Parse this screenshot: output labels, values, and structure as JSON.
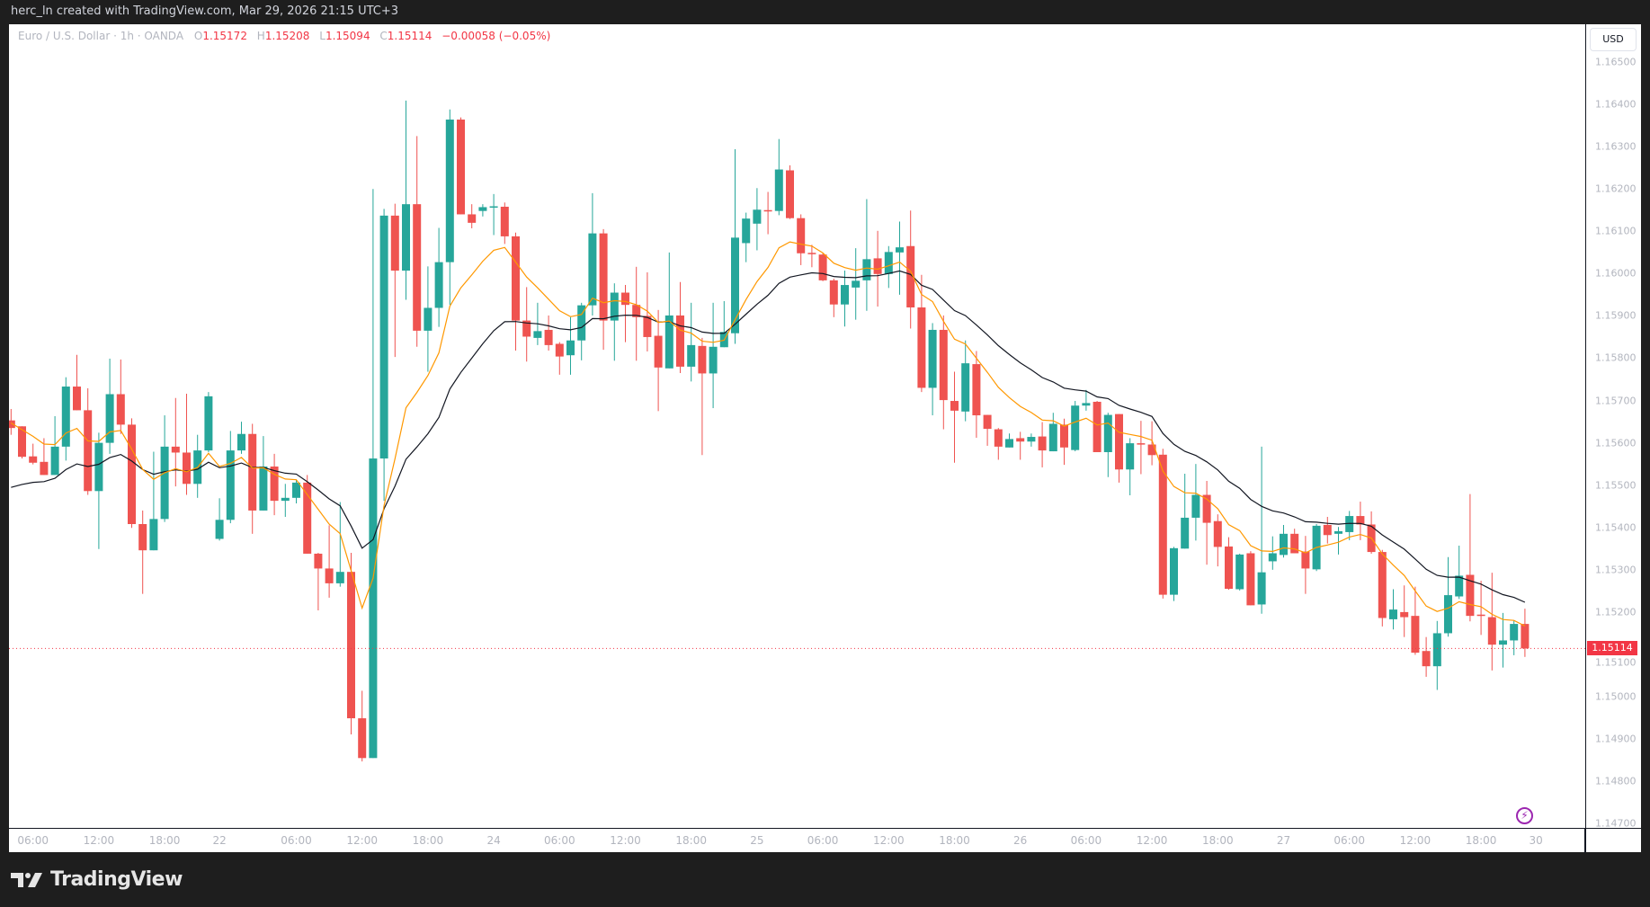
{
  "header": {
    "caption": "herc_ln created with TradingView.com, Mar 29, 2026 21:15 UTC+3"
  },
  "legend": {
    "symbol": "Euro / U.S. Dollar · 1h · OANDA",
    "open_label": "O",
    "open": "1.15172",
    "high_label": "H",
    "high": "1.15208",
    "low_label": "L",
    "low": "1.15094",
    "close_label": "C",
    "close": "1.15114",
    "change": "−0.00058 (−0.05%)"
  },
  "price_axis": {
    "currency": "USD",
    "last_price": "1.15114"
  },
  "footer": {
    "brand": "TradingView"
  },
  "colors": {
    "up": "#26a69a",
    "down": "#ef5350",
    "fast_ma": "#ff9800",
    "slow_ma": "#131722",
    "last_price": "#f23645",
    "alert_icon": "#9c27b0"
  },
  "icons": {
    "alert": "lightning-icon",
    "brand": "tradingview-logo-icon"
  },
  "chart_data": {
    "type": "candlestick",
    "interval": "1h",
    "ylim": [
      1.147,
      1.165
    ],
    "grid": false,
    "y_ticks": [
      "1.16500",
      "1.16400",
      "1.16300",
      "1.16200",
      "1.16100",
      "1.16000",
      "1.15900",
      "1.15800",
      "1.15700",
      "1.15600",
      "1.15500",
      "1.15400",
      "1.15300",
      "1.15200",
      "1.15100",
      "1.15000",
      "1.14900",
      "1.14800",
      "1.14700"
    ],
    "x_ticks": [
      "06:00",
      "12:00",
      "18:00",
      "22",
      "06:00",
      "12:00",
      "18:00",
      "24",
      "06:00",
      "12:00",
      "18:00",
      "25",
      "06:00",
      "12:00",
      "18:00",
      "26",
      "06:00",
      "12:00",
      "18:00",
      "27",
      "06:00",
      "12:00",
      "18:00",
      "30"
    ],
    "ohlc_fields": [
      "open",
      "high",
      "low",
      "close"
    ],
    "candles": [
      [
        1.15653,
        1.1568,
        1.15619,
        1.15635
      ],
      [
        1.15639,
        1.15639,
        1.15563,
        1.15567
      ],
      [
        1.15568,
        1.15598,
        1.15549,
        1.15553
      ],
      [
        1.15555,
        1.15611,
        1.15524,
        1.15524
      ],
      [
        1.15524,
        1.15663,
        1.15524,
        1.15591
      ],
      [
        1.15591,
        1.15755,
        1.15558,
        1.15733
      ],
      [
        1.15733,
        1.15808,
        1.15677,
        1.15677
      ],
      [
        1.15677,
        1.15729,
        1.15477,
        1.15486
      ],
      [
        1.15486,
        1.15624,
        1.15349,
        1.156
      ],
      [
        1.156,
        1.15799,
        1.15574,
        1.15715
      ],
      [
        1.15715,
        1.15797,
        1.15621,
        1.15643
      ],
      [
        1.15643,
        1.15658,
        1.15399,
        1.15408
      ],
      [
        1.15408,
        1.1544,
        1.15243,
        1.15346
      ],
      [
        1.15346,
        1.15579,
        1.15346,
        1.1542
      ],
      [
        1.1542,
        1.15665,
        1.15413,
        1.15591
      ],
      [
        1.15591,
        1.15706,
        1.15497,
        1.15577
      ],
      [
        1.15577,
        1.15716,
        1.15477,
        1.15503
      ],
      [
        1.15503,
        1.15619,
        1.1547,
        1.15582
      ],
      [
        1.15582,
        1.1572,
        1.15578,
        1.1571
      ],
      [
        1.15373,
        1.15469,
        1.15369,
        1.15418
      ],
      [
        1.15418,
        1.15628,
        1.1541,
        1.15582
      ],
      [
        1.15582,
        1.1565,
        1.15574,
        1.15621
      ],
      [
        1.15621,
        1.15645,
        1.15385,
        1.1544
      ],
      [
        1.1544,
        1.15616,
        1.1544,
        1.15544
      ],
      [
        1.15544,
        1.15574,
        1.15429,
        1.15463
      ],
      [
        1.15463,
        1.15503,
        1.15425,
        1.1547
      ],
      [
        1.1547,
        1.15512,
        1.15457,
        1.15506
      ],
      [
        1.15506,
        1.15524,
        1.15338,
        1.15338
      ],
      [
        1.15338,
        1.1534,
        1.15204,
        1.15303
      ],
      [
        1.15303,
        1.15405,
        1.15234,
        1.15268
      ],
      [
        1.15268,
        1.1546,
        1.1526,
        1.15295
      ],
      [
        1.15295,
        1.1534,
        1.14911,
        1.14949
      ],
      [
        1.14949,
        1.15014,
        1.14847,
        1.14855
      ],
      [
        1.14855,
        1.162,
        1.14855,
        1.15563
      ],
      [
        1.15563,
        1.16153,
        1.15463,
        1.16137
      ],
      [
        1.16137,
        1.16165,
        1.15803,
        1.16007
      ],
      [
        1.16007,
        1.16409,
        1.15938,
        1.16164
      ],
      [
        1.16164,
        1.16325,
        1.15827,
        1.15865
      ],
      [
        1.15865,
        1.16017,
        1.15768,
        1.15919
      ],
      [
        1.15919,
        1.16108,
        1.15874,
        1.16027
      ],
      [
        1.16027,
        1.16388,
        1.15926,
        1.16364
      ],
      [
        1.16364,
        1.16369,
        1.1614,
        1.1614
      ],
      [
        1.1614,
        1.16164,
        1.16107,
        1.1612
      ],
      [
        1.16148,
        1.16164,
        1.16135,
        1.16157
      ],
      [
        1.16157,
        1.16188,
        1.16091,
        1.16159
      ],
      [
        1.16158,
        1.16168,
        1.1607,
        1.16088
      ],
      [
        1.16088,
        1.16097,
        1.15818,
        1.15889
      ],
      [
        1.15889,
        1.15968,
        1.15792,
        1.15851
      ],
      [
        1.15848,
        1.15931,
        1.15831,
        1.15864
      ],
      [
        1.15867,
        1.15901,
        1.15818,
        1.15831
      ],
      [
        1.15834,
        1.15838,
        1.15761,
        1.15804
      ],
      [
        1.15807,
        1.15897,
        1.15761,
        1.15842
      ],
      [
        1.15842,
        1.15931,
        1.15795,
        1.15925
      ],
      [
        1.15925,
        1.1619,
        1.15901,
        1.16095
      ],
      [
        1.16095,
        1.16105,
        1.1582,
        1.15889
      ],
      [
        1.15889,
        1.15977,
        1.15794,
        1.15955
      ],
      [
        1.15955,
        1.15973,
        1.15838,
        1.15926
      ],
      [
        1.15926,
        1.16016,
        1.15794,
        1.15897
      ],
      [
        1.159,
        1.16003,
        1.15816,
        1.1585
      ],
      [
        1.15853,
        1.15914,
        1.15675,
        1.15778
      ],
      [
        1.15776,
        1.1605,
        1.15776,
        1.15901
      ],
      [
        1.15901,
        1.1598,
        1.15765,
        1.1578
      ],
      [
        1.1578,
        1.15931,
        1.15745,
        1.15831
      ],
      [
        1.15829,
        1.15848,
        1.15571,
        1.15764
      ],
      [
        1.15764,
        1.15931,
        1.15682,
        1.15827
      ],
      [
        1.15826,
        1.15935,
        1.15826,
        1.15862
      ],
      [
        1.15859,
        1.16294,
        1.15834,
        1.16085
      ],
      [
        1.16072,
        1.16144,
        1.16027,
        1.1613
      ],
      [
        1.16118,
        1.16202,
        1.16055,
        1.16151
      ],
      [
        1.1615,
        1.16193,
        1.16093,
        1.16148
      ],
      [
        1.16148,
        1.16318,
        1.16138,
        1.16246
      ],
      [
        1.16244,
        1.16256,
        1.16129,
        1.16131
      ],
      [
        1.16131,
        1.1614,
        1.1602,
        1.16048
      ],
      [
        1.16049,
        1.16068,
        1.16015,
        1.16047
      ],
      [
        1.16045,
        1.16049,
        1.15982,
        1.15984
      ],
      [
        1.15984,
        1.15988,
        1.15897,
        1.15927
      ],
      [
        1.15927,
        1.16007,
        1.15875,
        1.15973
      ],
      [
        1.15967,
        1.1606,
        1.15891,
        1.15983
      ],
      [
        1.15984,
        1.16176,
        1.15912,
        1.16034
      ],
      [
        1.16036,
        1.16101,
        1.15922,
        1.15999
      ],
      [
        1.15999,
        1.16065,
        1.15966,
        1.16051
      ],
      [
        1.1605,
        1.16123,
        1.1595,
        1.16062
      ],
      [
        1.16065,
        1.16149,
        1.1587,
        1.1592
      ],
      [
        1.1592,
        1.15997,
        1.1572,
        1.1573
      ],
      [
        1.1573,
        1.15883,
        1.15665,
        1.15867
      ],
      [
        1.15867,
        1.15901,
        1.15632,
        1.15701
      ],
      [
        1.15699,
        1.15768,
        1.15553,
        1.15676
      ],
      [
        1.15674,
        1.15842,
        1.15651,
        1.15788
      ],
      [
        1.15786,
        1.15817,
        1.15612,
        1.15665
      ],
      [
        1.15666,
        1.15666,
        1.15593,
        1.15633
      ],
      [
        1.15632,
        1.15635,
        1.1556,
        1.15591
      ],
      [
        1.15589,
        1.15622,
        1.15589,
        1.15609
      ],
      [
        1.15611,
        1.15626,
        1.1556,
        1.15603
      ],
      [
        1.15603,
        1.15622,
        1.15591,
        1.15614
      ],
      [
        1.15615,
        1.15649,
        1.15542,
        1.15582
      ],
      [
        1.1558,
        1.15671,
        1.1558,
        1.15645
      ],
      [
        1.15643,
        1.15657,
        1.15548,
        1.15589
      ],
      [
        1.15583,
        1.15699,
        1.1558,
        1.15688
      ],
      [
        1.15688,
        1.15725,
        1.15676,
        1.15694
      ],
      [
        1.15697,
        1.15699,
        1.15578,
        1.15578
      ],
      [
        1.15578,
        1.15671,
        1.15519,
        1.15666
      ],
      [
        1.15668,
        1.15668,
        1.15506,
        1.15537
      ],
      [
        1.15537,
        1.15611,
        1.15476,
        1.15599
      ],
      [
        1.15599,
        1.15652,
        1.15526,
        1.15596
      ],
      [
        1.15596,
        1.15651,
        1.15547,
        1.15571
      ],
      [
        1.15572,
        1.15586,
        1.15232,
        1.15241
      ],
      [
        1.15241,
        1.15354,
        1.15226,
        1.15351
      ],
      [
        1.1535,
        1.15527,
        1.1535,
        1.15423
      ],
      [
        1.15423,
        1.1555,
        1.15369,
        1.15477
      ],
      [
        1.15477,
        1.1551,
        1.15312,
        1.15411
      ],
      [
        1.15415,
        1.15431,
        1.15308,
        1.15354
      ],
      [
        1.15355,
        1.15377,
        1.15253,
        1.15255
      ],
      [
        1.15254,
        1.15338,
        1.15251,
        1.15336
      ],
      [
        1.15339,
        1.15344,
        1.15216,
        1.15216
      ],
      [
        1.15218,
        1.15591,
        1.15196,
        1.15294
      ],
      [
        1.1532,
        1.15379,
        1.153,
        1.15339
      ],
      [
        1.15335,
        1.15406,
        1.15329,
        1.15385
      ],
      [
        1.15385,
        1.15397,
        1.15339,
        1.15339
      ],
      [
        1.15343,
        1.1538,
        1.15243,
        1.15303
      ],
      [
        1.15301,
        1.15408,
        1.15297,
        1.15404
      ],
      [
        1.15406,
        1.15425,
        1.15362,
        1.15382
      ],
      [
        1.15385,
        1.15401,
        1.15336,
        1.15391
      ],
      [
        1.15389,
        1.15439,
        1.1537,
        1.15427
      ],
      [
        1.15427,
        1.15461,
        1.1537,
        1.15407
      ],
      [
        1.15407,
        1.15438,
        1.15338,
        1.15342
      ],
      [
        1.15342,
        1.15347,
        1.15166,
        1.15186
      ],
      [
        1.15183,
        1.15254,
        1.15159,
        1.15206
      ],
      [
        1.152,
        1.15263,
        1.15141,
        1.15188
      ],
      [
        1.15191,
        1.1526,
        1.15099,
        1.15104
      ],
      [
        1.15108,
        1.15141,
        1.15047,
        1.15072
      ],
      [
        1.15072,
        1.15179,
        1.15016,
        1.1515
      ],
      [
        1.1515,
        1.1533,
        1.15142,
        1.1524
      ],
      [
        1.15237,
        1.15357,
        1.15231,
        1.15286
      ],
      [
        1.15288,
        1.15479,
        1.15178,
        1.15191
      ],
      [
        1.15194,
        1.15274,
        1.15146,
        1.15192
      ],
      [
        1.15188,
        1.15293,
        1.15062,
        1.15123
      ],
      [
        1.15123,
        1.15198,
        1.15069,
        1.15133
      ],
      [
        1.15133,
        1.1518,
        1.15098,
        1.15172
      ],
      [
        1.15172,
        1.15208,
        1.15094,
        1.15114
      ]
    ]
  }
}
